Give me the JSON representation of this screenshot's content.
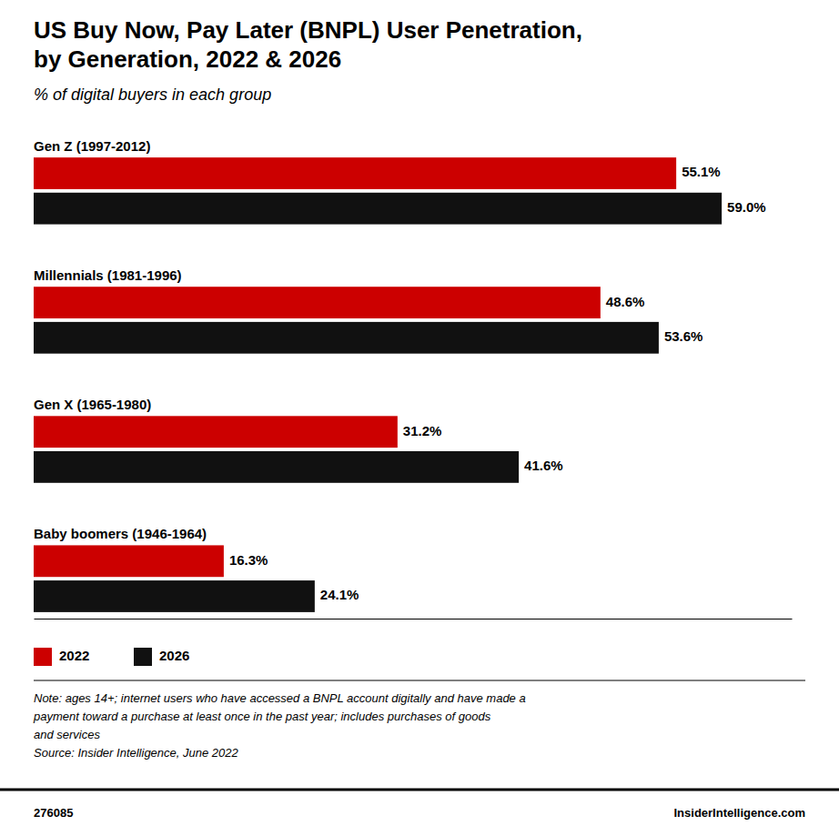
{
  "chart_data": {
    "type": "bar",
    "orientation": "horizontal",
    "title": "US Buy Now, Pay Later (BNPL) User Penetration,\nby Generation, 2022 & 2026",
    "subtitle": "% of digital buyers in each group",
    "categories": [
      "Gen Z (1997-2012)",
      "Millennials (1981-1996)",
      "Gen X (1965-1980)",
      "Baby boomers (1946-1964)"
    ],
    "series": [
      {
        "name": "2022",
        "color": "#cc0000",
        "values": [
          55.1,
          48.6,
          31.2,
          16.3
        ],
        "value_labels": [
          "55.1%",
          "48.6%",
          "31.2%",
          "16.3%"
        ]
      },
      {
        "name": "2026",
        "color": "#111111",
        "values": [
          59.0,
          53.6,
          41.6,
          24.1
        ],
        "value_labels": [
          "59.0%",
          "53.6%",
          "41.6%",
          "24.1%"
        ]
      }
    ],
    "xlim": [
      0,
      65
    ],
    "data_labels": true,
    "tick_labels": false,
    "grid": false,
    "legend": "lower left",
    "annotations": [
      "Note: ages 14+; internet users who have accessed a BNPL account digitally and have made a",
      "payment toward a purchase at least once in the past year; includes purchases of goods",
      "and services",
      "Source: Insider Intelligence, June 2022",
      "276085",
      "InsiderIntelligence.com"
    ]
  }
}
